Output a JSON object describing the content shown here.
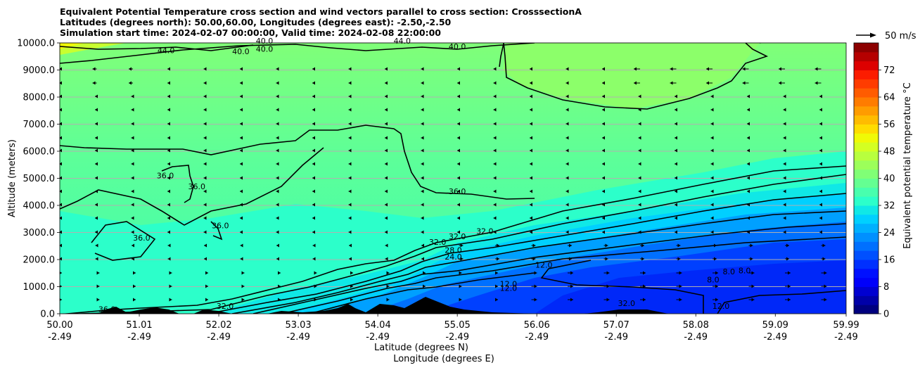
{
  "chart_data": {
    "type": "contour",
    "title_lines": [
      "Equivalent Potential Temperature cross section and wind vectors parallel to cross section: CrosssectionA",
      "Latitudes (degrees north): 50.00,60.00, Longitudes (degrees east): -2.50,-2.50",
      "Simulation start time: 2024-02-07 00:00:00, Valid time: 2024-02-08 22:00:00"
    ],
    "ylabel": "Altitude (meters)",
    "xlabel_lines": [
      "Latitude (degrees N)",
      "Longitude (degrees E)"
    ],
    "y_ticks": [
      "0.0",
      "1000.0",
      "2000.0",
      "3000.0",
      "4000.0",
      "5000.0",
      "6000.0",
      "7000.0",
      "8000.0",
      "9000.0",
      "10000.0"
    ],
    "ylim": [
      0,
      10000
    ],
    "x_ticks": [
      {
        "lat": "50.00",
        "lon": "-2.49"
      },
      {
        "lat": "51.01",
        "lon": "-2.49"
      },
      {
        "lat": "52.02",
        "lon": "-2.49"
      },
      {
        "lat": "53.03",
        "lon": "-2.49"
      },
      {
        "lat": "54.04",
        "lon": "-2.49"
      },
      {
        "lat": "55.05",
        "lon": "-2.49"
      },
      {
        "lat": "56.06",
        "lon": "-2.49"
      },
      {
        "lat": "57.07",
        "lon": "-2.49"
      },
      {
        "lat": "58.08",
        "lon": "-2.49"
      },
      {
        "lat": "59.09",
        "lon": "-2.49"
      },
      {
        "lat": "59.99",
        "lon": "-2.49"
      }
    ],
    "xlim": [
      50.0,
      59.99
    ],
    "grid": "horizontal",
    "colorbar": {
      "label": "Equivalent potential temperature °C",
      "ticks": [
        "0",
        "8",
        "16",
        "24",
        "32",
        "40",
        "48",
        "56",
        "64",
        "72"
      ],
      "range": [
        0,
        80
      ],
      "colors": [
        "#00007f",
        "#0000a8",
        "#0000d1",
        "#0000fa",
        "#0010ff",
        "#0030ff",
        "#0050ff",
        "#0070ff",
        "#0090ff",
        "#00b0ff",
        "#00d0ff",
        "#10e8e6",
        "#2cffca",
        "#48ffae",
        "#64ff92",
        "#80ff76",
        "#9cff5a",
        "#b8ff3e",
        "#d4ff22",
        "#f0f906",
        "#ffdc00",
        "#ffbc00",
        "#ff9c00",
        "#ff7c00",
        "#ff5c00",
        "#ff3c00",
        "#fc1c00",
        "#dd0000",
        "#b50000",
        "#8c0000"
      ]
    },
    "vector_key": "50 m/s",
    "contour_labels": [
      {
        "text": "44.0",
        "lat": 51.35,
        "alt": 9620
      },
      {
        "text": "40.0",
        "lat": 52.3,
        "alt": 9580
      },
      {
        "text": "40.0",
        "lat": 52.6,
        "alt": 9680
      },
      {
        "text": "40.0",
        "lat": 52.6,
        "alt": 9980
      },
      {
        "text": "44.0",
        "lat": 54.35,
        "alt": 9980
      },
      {
        "text": "40.0",
        "lat": 55.05,
        "alt": 9760
      },
      {
        "text": "36.0",
        "lat": 51.34,
        "alt": 5000
      },
      {
        "text": "36.0",
        "lat": 51.74,
        "alt": 4600
      },
      {
        "text": "36.0",
        "lat": 51.04,
        "alt": 2700
      },
      {
        "text": "36.0",
        "lat": 52.04,
        "alt": 3150
      },
      {
        "text": "36.0",
        "lat": 55.05,
        "alt": 4420
      },
      {
        "text": "36.0",
        "lat": 50.6,
        "alt": 70
      },
      {
        "text": "32.0",
        "lat": 54.8,
        "alt": 2550
      },
      {
        "text": "32.0",
        "lat": 55.05,
        "alt": 2750
      },
      {
        "text": "32.0",
        "lat": 55.4,
        "alt": 2950
      },
      {
        "text": "28.0",
        "lat": 55.0,
        "alt": 2250
      },
      {
        "text": "24.0",
        "lat": 55.0,
        "alt": 2000
      },
      {
        "text": "12.0",
        "lat": 56.15,
        "alt": 1700
      },
      {
        "text": "12.0",
        "lat": 55.7,
        "alt": 1000
      },
      {
        "text": "12.0",
        "lat": 55.7,
        "alt": 850
      },
      {
        "text": "8.0",
        "lat": 58.3,
        "alt": 1150
      },
      {
        "text": "8.0",
        "lat": 58.5,
        "alt": 1450
      },
      {
        "text": "8.0",
        "lat": 58.7,
        "alt": 1500
      },
      {
        "text": "12.0",
        "lat": 58.4,
        "alt": 180
      },
      {
        "text": "32.0",
        "lat": 57.2,
        "alt": 280
      },
      {
        "text": "32.0",
        "lat": 52.1,
        "alt": 180
      }
    ]
  }
}
